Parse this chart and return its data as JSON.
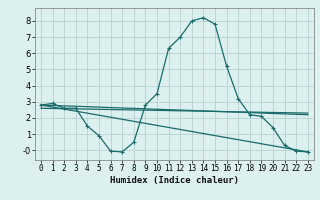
{
  "xlabel": "Humidex (Indice chaleur)",
  "bg_color": "#ddf0f0",
  "grid_color": "#b8d0d0",
  "line_color": "#1a6b6b",
  "x_ticks": [
    0,
    1,
    2,
    3,
    4,
    5,
    6,
    7,
    8,
    9,
    10,
    11,
    12,
    13,
    14,
    15,
    16,
    17,
    18,
    19,
    20,
    21,
    22,
    23
  ],
  "y_ticks": [
    0,
    1,
    2,
    3,
    4,
    5,
    6,
    7,
    8
  ],
  "y_tick_labels": [
    "-0",
    "1",
    "2",
    "3",
    "4",
    "5",
    "6",
    "7",
    "8"
  ],
  "ylim": [
    -0.6,
    8.8
  ],
  "xlim": [
    -0.5,
    23.5
  ],
  "series": [
    {
      "x": [
        0,
        1,
        2,
        3,
        4,
        5,
        6,
        7,
        8,
        9,
        10,
        11,
        12,
        13,
        14,
        15,
        16,
        17,
        18,
        19,
        20,
        21,
        22,
        23
      ],
      "y": [
        2.8,
        2.9,
        2.6,
        2.6,
        1.5,
        0.9,
        -0.05,
        -0.1,
        0.5,
        2.8,
        3.5,
        6.3,
        7.0,
        8.0,
        8.2,
        7.8,
        5.2,
        3.2,
        2.2,
        2.1,
        1.4,
        0.3,
        -0.05,
        -0.1
      ],
      "has_marker": true
    },
    {
      "x": [
        0,
        23
      ],
      "y": [
        2.8,
        2.2
      ],
      "has_marker": false
    },
    {
      "x": [
        0,
        23
      ],
      "y": [
        2.8,
        -0.1
      ],
      "has_marker": false
    },
    {
      "x": [
        0,
        23
      ],
      "y": [
        2.6,
        2.3
      ],
      "has_marker": false
    }
  ],
  "tick_fontsize": 5.5,
  "xlabel_fontsize": 6.5,
  "linewidth": 0.9,
  "marker_size": 3.0
}
